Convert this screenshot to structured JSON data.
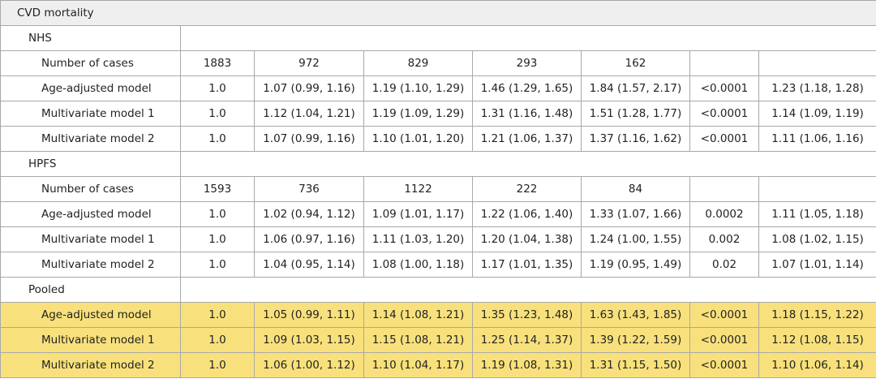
{
  "table": {
    "title": "CVD mortality",
    "sections": [
      {
        "name": "NHS",
        "rows": [
          {
            "label": "Number of cases",
            "cells": [
              "1883",
              "972",
              "829",
              "293",
              "162"
            ]
          },
          {
            "label": "Age-adjusted model",
            "cells": [
              "1.0",
              "1.07 (0.99, 1.16)",
              "1.19 (1.10, 1.29)",
              "1.46 (1.29, 1.65)",
              "1.84 (1.57, 2.17)",
              "<0.0001",
              "1.23 (1.18, 1.28)"
            ]
          },
          {
            "label": "Multivariate model 1",
            "cells": [
              "1.0",
              "1.12 (1.04, 1.21)",
              "1.19 (1.09, 1.29)",
              "1.31 (1.16, 1.48)",
              "1.51 (1.28, 1.77)",
              "<0.0001",
              "1.14 (1.09, 1.19)"
            ]
          },
          {
            "label": "Multivariate model 2",
            "cells": [
              "1.0",
              "1.07 (0.99, 1.16)",
              "1.10 (1.01, 1.20)",
              "1.21 (1.06, 1.37)",
              "1.37 (1.16, 1.62)",
              "<0.0001",
              "1.11 (1.06, 1.16)"
            ]
          }
        ]
      },
      {
        "name": "HPFS",
        "rows": [
          {
            "label": "Number of cases",
            "cells": [
              "1593",
              "736",
              "1122",
              "222",
              "84"
            ]
          },
          {
            "label": "Age-adjusted model",
            "cells": [
              "1.0",
              "1.02 (0.94, 1.12)",
              "1.09 (1.01, 1.17)",
              "1.22 (1.06, 1.40)",
              "1.33 (1.07, 1.66)",
              "0.0002",
              "1.11 (1.05, 1.18)"
            ]
          },
          {
            "label": "Multivariate model 1",
            "cells": [
              "1.0",
              "1.06 (0.97, 1.16)",
              "1.11 (1.03, 1.20)",
              "1.20 (1.04, 1.38)",
              "1.24 (1.00, 1.55)",
              "0.002",
              "1.08 (1.02, 1.15)"
            ]
          },
          {
            "label": "Multivariate model 2",
            "cells": [
              "1.0",
              "1.04 (0.95, 1.14)",
              "1.08 (1.00, 1.18)",
              "1.17 (1.01, 1.35)",
              "1.19 (0.95, 1.49)",
              "0.02",
              "1.07 (1.01, 1.14)"
            ]
          }
        ]
      },
      {
        "name": "Pooled",
        "highlight": true,
        "rows": [
          {
            "label": "Age-adjusted model",
            "cells": [
              "1.0",
              "1.05 (0.99, 1.11)",
              "1.14 (1.08, 1.21)",
              "1.35 (1.23, 1.48)",
              "1.63 (1.43, 1.85)",
              "<0.0001",
              "1.18 (1.15, 1.22)"
            ]
          },
          {
            "label": "Multivariate model 1",
            "cells": [
              "1.0",
              "1.09 (1.03, 1.15)",
              "1.15 (1.08, 1.21)",
              "1.25 (1.14, 1.37)",
              "1.39 (1.22, 1.59)",
              "<0.0001",
              "1.12 (1.08, 1.15)"
            ]
          },
          {
            "label": "Multivariate model 2",
            "cells": [
              "1.0",
              "1.06 (1.00, 1.12)",
              "1.10 (1.04, 1.17)",
              "1.19 (1.08, 1.31)",
              "1.31 (1.15, 1.50)",
              "<0.0001",
              "1.10 (1.06, 1.14)"
            ]
          }
        ]
      }
    ]
  }
}
